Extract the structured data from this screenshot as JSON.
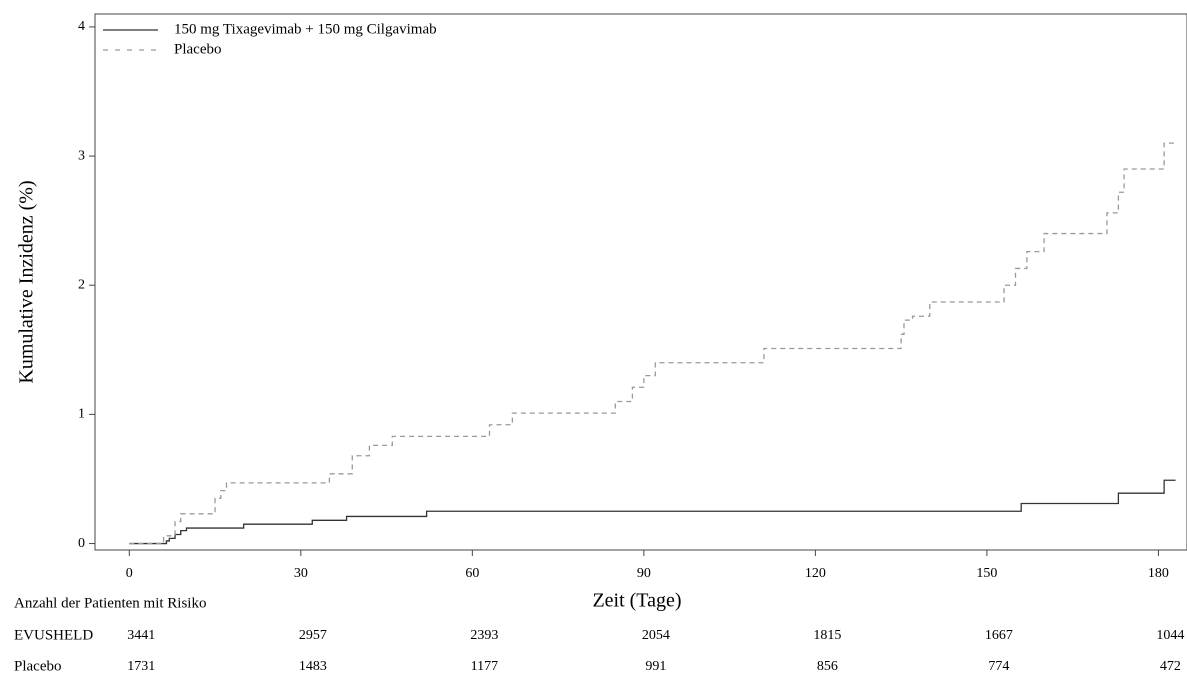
{
  "chart_data": {
    "type": "line",
    "step": "post",
    "y_label": "Kumulative Inzidenz (%)",
    "x_label": "Zeit (Tage)",
    "xlim": [
      -6,
      185
    ],
    "xticks": [
      0,
      30,
      60,
      90,
      120,
      150,
      180
    ],
    "ylim": [
      -0.05,
      4.1
    ],
    "yticks": [
      0,
      1,
      2,
      3,
      4
    ],
    "legend": "upper left",
    "series": [
      {
        "name": "150 mg Tixagevimab + 150 mg Cilgavimab",
        "color": "#333333",
        "dash": "solid",
        "x": [
          0,
          6.5,
          7,
          8,
          9,
          10,
          20,
          32,
          38,
          52,
          156,
          173,
          181,
          183
        ],
        "values": [
          0,
          0.02,
          0.04,
          0.07,
          0.1,
          0.12,
          0.15,
          0.18,
          0.21,
          0.25,
          0.31,
          0.39,
          0.49,
          0.49
        ]
      },
      {
        "name": "Placebo",
        "color": "#999999",
        "dash": "dashed",
        "x": [
          0,
          6,
          8,
          9,
          15,
          16,
          17,
          35,
          39,
          42,
          46,
          63,
          67,
          85,
          88,
          90,
          92,
          111,
          135,
          135.5,
          137,
          140,
          153,
          155,
          157,
          160,
          171,
          173,
          174,
          181,
          183
        ],
        "values": [
          0,
          0.06,
          0.17,
          0.23,
          0.35,
          0.41,
          0.47,
          0.54,
          0.68,
          0.76,
          0.83,
          0.92,
          1.01,
          1.1,
          1.21,
          1.3,
          1.4,
          1.51,
          1.62,
          1.73,
          1.76,
          1.87,
          2.0,
          2.13,
          2.26,
          2.4,
          2.56,
          2.72,
          2.9,
          3.1,
          3.1
        ]
      }
    ],
    "risk_table": {
      "title": "Anzahl der Patienten mit Risiko",
      "rows": [
        {
          "label": "EVUSHELD",
          "values": [
            3441,
            2957,
            2393,
            2054,
            1815,
            1667,
            1044
          ]
        },
        {
          "label": "Placebo",
          "values": [
            1731,
            1483,
            1177,
            991,
            856,
            774,
            472
          ]
        }
      ]
    }
  }
}
